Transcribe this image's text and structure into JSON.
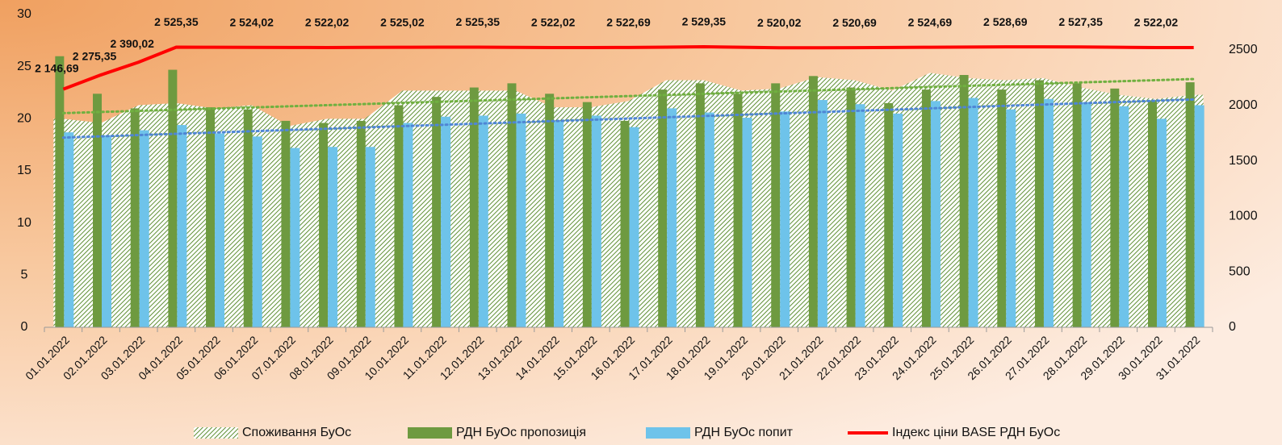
{
  "chart_data": {
    "type": "bar",
    "categories": [
      "01.01.2022",
      "02.01.2022",
      "03.01.2022",
      "04.01.2022",
      "05.01.2022",
      "06.01.2022",
      "07.01.2022",
      "08.01.2022",
      "09.01.2022",
      "10.01.2022",
      "11.01.2022",
      "12.01.2022",
      "13.01.2022",
      "14.01.2022",
      "15.01.2022",
      "16.01.2022",
      "17.01.2022",
      "18.01.2022",
      "19.01.2022",
      "20.01.2022",
      "21.01.2022",
      "22.01.2022",
      "23.01.2022",
      "24.01.2022",
      "25.01.2022",
      "26.01.2022",
      "27.01.2022",
      "28.01.2022",
      "29.01.2022",
      "30.01.2022",
      "31.01.2022"
    ],
    "series": [
      {
        "name": "Споживання БуОс",
        "type": "area",
        "color": "#6a9a3a",
        "trendline": true,
        "trend_color": "#70b040",
        "values": [
          20.0,
          19.6,
          21.3,
          21.5,
          21.0,
          21.3,
          19.3,
          20.0,
          20.0,
          22.7,
          22.7,
          22.7,
          22.7,
          21.1,
          21.1,
          21.7,
          23.7,
          23.7,
          22.7,
          22.9,
          24.0,
          23.7,
          22.7,
          24.4,
          23.9,
          23.7,
          23.9,
          23.0,
          22.3,
          21.9,
          22.3
        ]
      },
      {
        "name": "РДН БуОс пропозиція",
        "type": "bar",
        "color": "#6e9a40",
        "values": [
          26.0,
          22.4,
          21.0,
          24.7,
          21.1,
          20.9,
          19.8,
          19.6,
          19.8,
          21.3,
          22.1,
          23.0,
          23.4,
          22.4,
          21.6,
          19.8,
          22.8,
          23.4,
          22.4,
          23.4,
          24.1,
          23.0,
          21.5,
          22.8,
          24.2,
          22.8,
          23.7,
          23.4,
          22.9,
          21.7,
          23.5
        ]
      },
      {
        "name": "РДН БуОс попит",
        "type": "bar",
        "color": "#6ec3ea",
        "trendline": true,
        "trend_color": "#4f86d4",
        "values": [
          18.7,
          18.4,
          18.9,
          19.4,
          18.6,
          18.3,
          17.2,
          17.3,
          17.3,
          19.6,
          20.2,
          20.3,
          20.5,
          19.8,
          20.3,
          19.2,
          21.0,
          20.6,
          20.1,
          20.7,
          21.8,
          21.4,
          20.5,
          21.7,
          22.0,
          20.9,
          21.9,
          21.6,
          21.2,
          20.0,
          21.3
        ]
      },
      {
        "name": "Індекс ціни BASE РДН БуОс",
        "type": "line",
        "axis": "y2",
        "color": "#ff0000",
        "values": [
          2146.69,
          2275.35,
          2390.02,
          2525.35,
          2524.7,
          2524.02,
          2523.0,
          2522.02,
          2523.5,
          2525.02,
          2525.2,
          2525.35,
          2523.7,
          2522.02,
          2522.3,
          2522.69,
          2526.0,
          2529.35,
          2524.7,
          2520.02,
          2520.3,
          2520.69,
          2522.7,
          2524.69,
          2526.7,
          2528.69,
          2528.0,
          2527.35,
          2524.7,
          2522.02,
          2522.02
        ],
        "value_labels": [
          "2 146,69",
          "2 275,35",
          "2 390,02",
          "2 525,35",
          null,
          "2 524,02",
          null,
          "2 522,02",
          null,
          "2 525,02",
          null,
          "2 525,35",
          null,
          "2 522,02",
          null,
          "2 522,69",
          null,
          "2 529,35",
          null,
          "2 520,02",
          null,
          "2 520,69",
          null,
          "2 524,69",
          null,
          "2 528,69",
          null,
          "2 527,35",
          null,
          "2 522,02",
          null
        ]
      }
    ],
    "ylim": [
      0,
      30
    ],
    "yticks": [
      0,
      5,
      10,
      15,
      20,
      25,
      30
    ],
    "y2lim": [
      0,
      2820
    ],
    "y2ticks": [
      0,
      500,
      1000,
      1500,
      2000,
      2500
    ],
    "legend": "bottom",
    "grid": false
  }
}
